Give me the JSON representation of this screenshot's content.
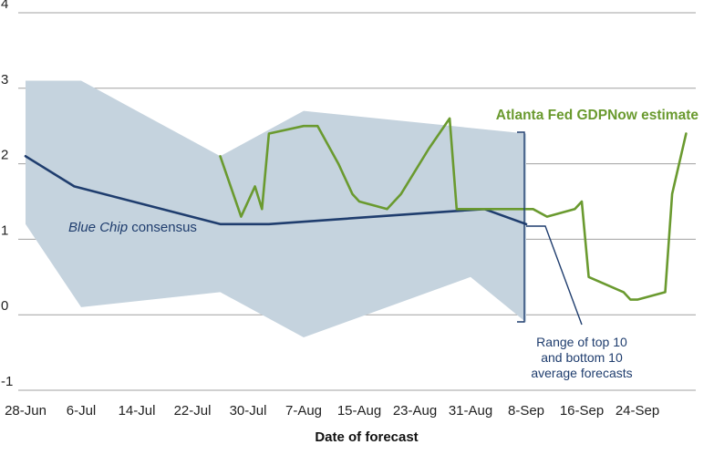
{
  "chart_data": {
    "type": "line",
    "xlabel": "Date of forecast",
    "ylabel": "",
    "ylim": [
      -1,
      4
    ],
    "yticks": [
      -1,
      0,
      1,
      2,
      3,
      4
    ],
    "grid": true,
    "x_ticks": [
      "28-Jun",
      "6-Jul",
      "14-Jul",
      "22-Jul",
      "30-Jul",
      "7-Aug",
      "15-Aug",
      "23-Aug",
      "31-Aug",
      "8-Sep",
      "16-Sep",
      "24-Sep"
    ],
    "x_tick_days": [
      0,
      8,
      16,
      24,
      32,
      40,
      48,
      56,
      64,
      72,
      80,
      88
    ],
    "xlim_days": [
      0,
      96
    ],
    "colors": {
      "blue_chip": "#1f3d6e",
      "gdpnow": "#6a9a2f",
      "band_fill": "#c5d3de",
      "annotation": "#1f3d6e",
      "grid": "#a0a0a0"
    },
    "series": [
      {
        "name": "Blue Chip consensus",
        "label_prefix": "Blue Chip",
        "label_suffix": " consensus",
        "points": [
          [
            0,
            2.1
          ],
          [
            7,
            1.7
          ],
          [
            28,
            1.2
          ],
          [
            35,
            1.2
          ],
          [
            58,
            1.35
          ],
          [
            66,
            1.4
          ],
          [
            72,
            1.2
          ]
        ]
      },
      {
        "name": "Atlanta Fed GDPNow estimate",
        "points": [
          [
            28,
            2.1
          ],
          [
            31,
            1.3
          ],
          [
            33,
            1.7
          ],
          [
            34,
            1.4
          ],
          [
            35,
            2.4
          ],
          [
            40,
            2.5
          ],
          [
            42,
            2.5
          ],
          [
            45,
            2.0
          ],
          [
            47,
            1.6
          ],
          [
            48,
            1.5
          ],
          [
            50,
            1.45
          ],
          [
            52,
            1.4
          ],
          [
            54,
            1.6
          ],
          [
            58,
            2.2
          ],
          [
            61,
            2.6
          ],
          [
            62,
            1.4
          ],
          [
            64,
            1.4
          ],
          [
            67,
            1.4
          ],
          [
            71,
            1.4
          ],
          [
            73,
            1.4
          ],
          [
            75,
            1.3
          ],
          [
            79,
            1.4
          ],
          [
            80,
            1.5
          ],
          [
            81,
            0.5
          ],
          [
            86,
            0.3
          ],
          [
            87,
            0.2
          ],
          [
            88,
            0.2
          ],
          [
            92,
            0.3
          ],
          [
            93,
            1.6
          ],
          [
            95,
            2.4
          ]
        ]
      }
    ],
    "range_band": {
      "name": "Range of top 10 and bottom 10 average forecasts",
      "upper": [
        [
          0,
          3.1
        ],
        [
          8,
          3.1
        ],
        [
          28,
          2.1
        ],
        [
          40,
          2.7
        ],
        [
          72,
          2.4
        ]
      ],
      "lower": [
        [
          72,
          -0.1
        ],
        [
          64,
          0.5
        ],
        [
          40,
          -0.3
        ],
        [
          28,
          0.3
        ],
        [
          8,
          0.1
        ],
        [
          0,
          1.2
        ]
      ]
    },
    "annotations": {
      "gdpnow_label": "Atlanta Fed GDPNow estimate",
      "range_label_lines": [
        "Range of top 10",
        "and bottom 10",
        "average forecasts"
      ]
    }
  }
}
